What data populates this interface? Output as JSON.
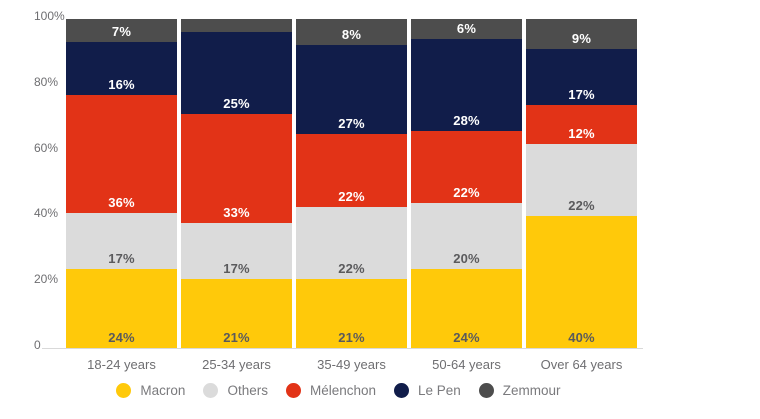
{
  "chart_data": {
    "type": "bar",
    "variant": "stacked-100-percent",
    "title": "",
    "xlabel": "",
    "ylabel": "",
    "categories": [
      "18-24 years",
      "25-34 years",
      "35-49 years",
      "50-64 years",
      "Over 64 years"
    ],
    "series": [
      {
        "name": "Macron",
        "color": "#FFC90A",
        "label_color": "#5A5A5C",
        "values": [
          24,
          21,
          21,
          24,
          40
        ],
        "labels": [
          "24%",
          "21%",
          "21%",
          "24%",
          "40%"
        ]
      },
      {
        "name": "Others",
        "color": "#DBDBDB",
        "label_color": "#5A5A5C",
        "values": [
          17,
          17,
          22,
          20,
          22
        ],
        "labels": [
          "17%",
          "17%",
          "22%",
          "20%",
          "22%"
        ]
      },
      {
        "name": "Mélenchon",
        "color": "#E23317",
        "label_color": "#FFFFFF",
        "values": [
          36,
          33,
          22,
          22,
          12
        ],
        "labels": [
          "36%",
          "33%",
          "22%",
          "22%",
          "12%"
        ]
      },
      {
        "name": "Le Pen",
        "color": "#111D4A",
        "label_color": "#FFFFFF",
        "values": [
          16,
          25,
          27,
          28,
          17
        ],
        "labels": [
          "16%",
          "25%",
          "27%",
          "28%",
          "17%"
        ]
      },
      {
        "name": "Zemmour",
        "color": "#4D4D4D",
        "label_color": "#FFFFFF",
        "values": [
          7,
          4,
          8,
          6,
          9
        ],
        "labels": [
          "7%",
          "",
          "8%",
          "6%",
          "9%"
        ]
      }
    ],
    "y_axis": {
      "ticks": [
        "100%",
        "80%",
        "60%",
        "40%",
        "20%",
        "0"
      ],
      "tick_values": [
        100,
        80,
        60,
        40,
        20,
        0
      ],
      "ylim": [
        0,
        100
      ],
      "grid": "baseline-only"
    },
    "legend": {
      "position": "bottom",
      "entries": [
        "Macron",
        "Others",
        "Mélenchon",
        "Le Pen",
        "Zemmour"
      ]
    }
  },
  "colors": {
    "background": "#FFFFFF",
    "axis_line": "#D9D9D9",
    "axis_text": "#6E6E71",
    "legend_text": "#7A7A7D"
  }
}
